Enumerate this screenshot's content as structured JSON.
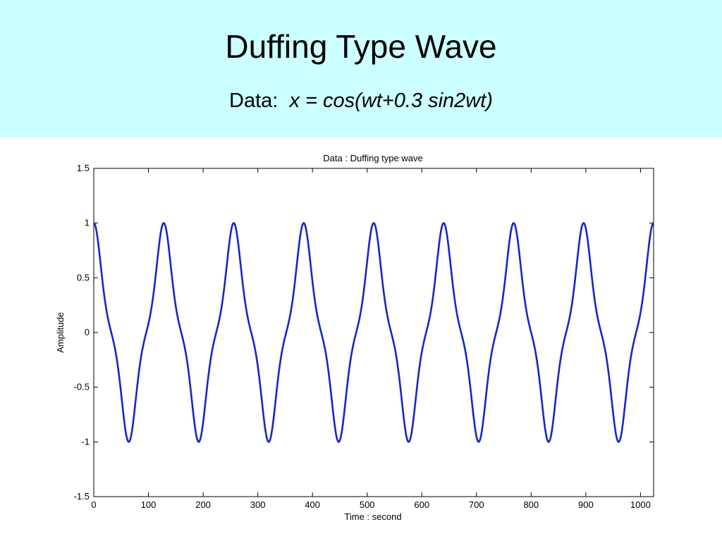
{
  "slide": {
    "title": "Duffing Type Wave",
    "subtitle_prefix": "Data:  ",
    "subtitle_formula": "x = cos(wt+0.3 sin2wt)"
  },
  "colors": {
    "header_background": "#ccffff",
    "series": "#1428c8",
    "axes": "#000000"
  },
  "chart_data": {
    "type": "line",
    "title": "Data : Duffing type wave",
    "xlabel": "Time : second",
    "ylabel": "Amplitude",
    "xlim": [
      0,
      1024
    ],
    "ylim": [
      -1.5,
      1.5
    ],
    "xticks": [
      0,
      100,
      200,
      300,
      400,
      500,
      600,
      700,
      800,
      900,
      1000
    ],
    "yticks": [
      -1.5,
      -1,
      -0.5,
      0,
      0.5,
      1,
      1.5
    ],
    "grid": false,
    "series": [
      {
        "formula": "x = cos(w t + 0.3 sin(2 w t))",
        "period": 128,
        "amplitude": 1,
        "x_start": 0,
        "x_end": 1024,
        "sample_step": 1
      }
    ]
  }
}
